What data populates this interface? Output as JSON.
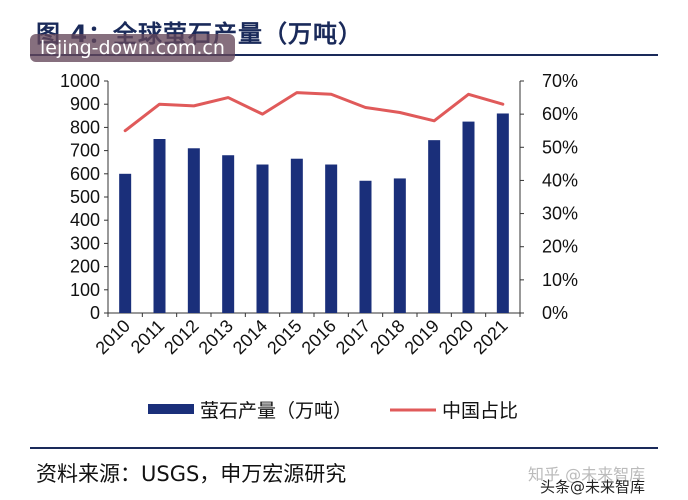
{
  "header": {
    "title": "图 4：全球萤石产量（万吨）",
    "watermark": "lejing-down.com.cn"
  },
  "footer": {
    "source": "资料来源：USGS，申万宏源研究",
    "watermark_faint": "知乎 @未来智库",
    "watermark_dark": "头条@未来智库"
  },
  "colors": {
    "bar": "#1a2f7a",
    "line": "#e05a5a",
    "axis_text": "#111111",
    "rule": "#1a2a5a"
  },
  "chart_data": {
    "type": "bar",
    "categories": [
      "2010",
      "2011",
      "2012",
      "2013",
      "2014",
      "2015",
      "2016",
      "2017",
      "2018",
      "2019",
      "2020",
      "2021"
    ],
    "series": [
      {
        "name": "萤石产量（万吨）",
        "type": "bar",
        "axis": "left",
        "values": [
          600,
          750,
          710,
          680,
          640,
          665,
          640,
          570,
          580,
          745,
          825,
          860
        ]
      },
      {
        "name": "中国占比",
        "type": "line",
        "axis": "right",
        "values": [
          0.55,
          0.63,
          0.625,
          0.65,
          0.6,
          0.665,
          0.66,
          0.62,
          0.605,
          0.58,
          0.66,
          0.63
        ]
      }
    ],
    "y_left": {
      "lim": [
        0,
        1000
      ],
      "ticks": [
        "0",
        "100",
        "200",
        "300",
        "400",
        "500",
        "600",
        "700",
        "800",
        "900",
        "1000"
      ]
    },
    "y_right": {
      "lim": [
        0,
        0.7
      ],
      "ticks": [
        "0%",
        "10%",
        "20%",
        "30%",
        "40%",
        "50%",
        "60%",
        "70%"
      ]
    },
    "xlabel": "",
    "ylabel": "",
    "grid": false,
    "legend_position": "bottom"
  }
}
